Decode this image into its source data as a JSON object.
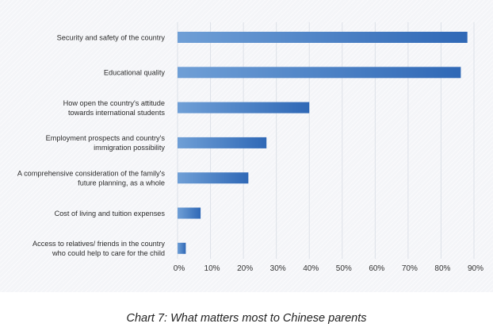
{
  "chart_data": {
    "type": "bar",
    "orientation": "horizontal",
    "categories": [
      [
        "Security and safety of the country"
      ],
      [
        "Educational quality"
      ],
      [
        "How open the country's attitude",
        "towards  international students"
      ],
      [
        "Employment prospects and country's",
        "immigration possibility"
      ],
      [
        "A comprehensive consideration of the family's",
        "future planning, as a whole"
      ],
      [
        "Cost of living and tuition expenses"
      ],
      [
        "Access to relatives/ friends in the country",
        "who could help to care for the child"
      ]
    ],
    "values": [
      88,
      86,
      40,
      27,
      21.5,
      7,
      2.5
    ],
    "xlim": [
      0,
      90
    ],
    "x_ticks": [
      "0%",
      "10%",
      "20%",
      "30%",
      "40%",
      "50%",
      "60%",
      "70%",
      "80%",
      "90%"
    ],
    "bar_color_start": "#6f9fd6",
    "bar_color_end": "#2f68b6",
    "grid": "vertical",
    "legend": "none",
    "title": "Chart 7: What matters most to Chinese parents"
  }
}
